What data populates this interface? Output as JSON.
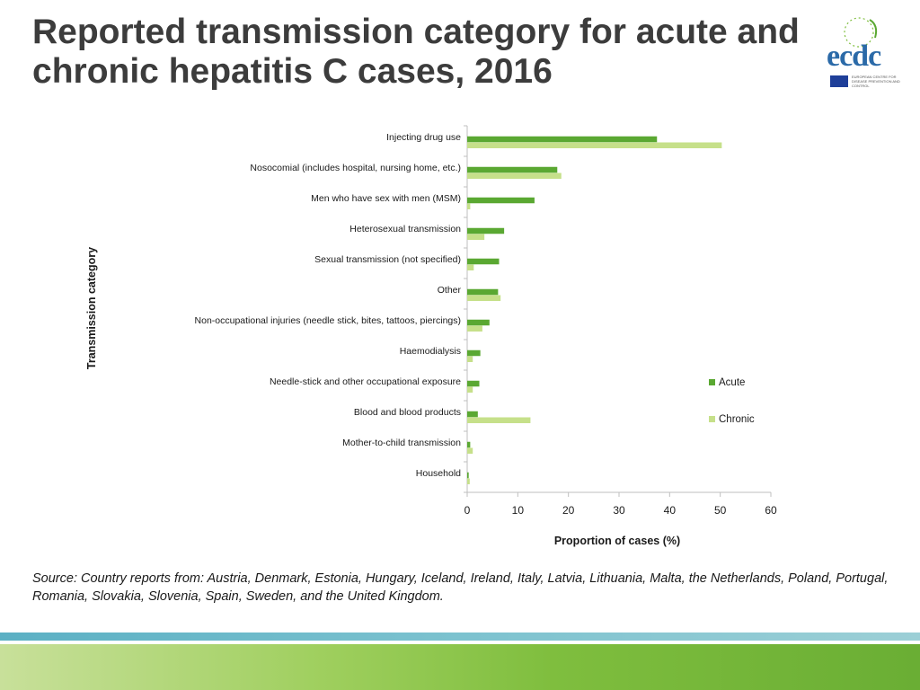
{
  "title": "Reported transmission category for acute and chronic hepatitis C cases, 2016",
  "logo": {
    "text": "ecdc",
    "tagline": "EUROPEAN CENTRE FOR DISEASE PREVENTION AND CONTROL"
  },
  "source": "Source: Country reports from: Austria, Denmark, Estonia, Hungary, Iceland, Ireland, Italy, Latvia, Lithuania, Malta, the Netherlands, Poland, Portugal, Romania, Slovakia, Slovenia, Spain, Sweden, and the United Kingdom.",
  "colors": {
    "acute": "#5aa832",
    "chronic": "#c6e08a",
    "axis": "#bfbfbf",
    "text": "#1a1a1a"
  },
  "chart_data": {
    "type": "bar",
    "orientation": "horizontal",
    "title": "",
    "xlabel": "Proportion of cases (%)",
    "ylabel": "Transmission category",
    "xlim": [
      0,
      60
    ],
    "xticks": [
      0,
      10,
      20,
      30,
      40,
      50,
      60
    ],
    "legend_position": "right",
    "categories": [
      "Injecting drug use",
      "Nosocomial (includes hospital, nursing home, etc.)",
      "Men who have sex with men (MSM)",
      "Heterosexual transmission",
      "Sexual transmission (not specified)",
      "Other",
      "Non-occupational injuries (needle stick, bites, tattoos, piercings)",
      "Haemodialysis",
      "Needle-stick and other occupational exposure",
      "Blood and blood products",
      "Mother-to-child transmission",
      "Household"
    ],
    "series": [
      {
        "name": "Acute",
        "values": [
          37.5,
          17.8,
          13.3,
          7.3,
          6.3,
          6.1,
          4.4,
          2.6,
          2.4,
          2.1,
          0.6,
          0.3
        ]
      },
      {
        "name": "Chronic",
        "values": [
          50.3,
          18.6,
          0.6,
          3.4,
          1.3,
          6.6,
          3.0,
          1.1,
          1.1,
          12.5,
          1.1,
          0.5
        ]
      }
    ]
  }
}
